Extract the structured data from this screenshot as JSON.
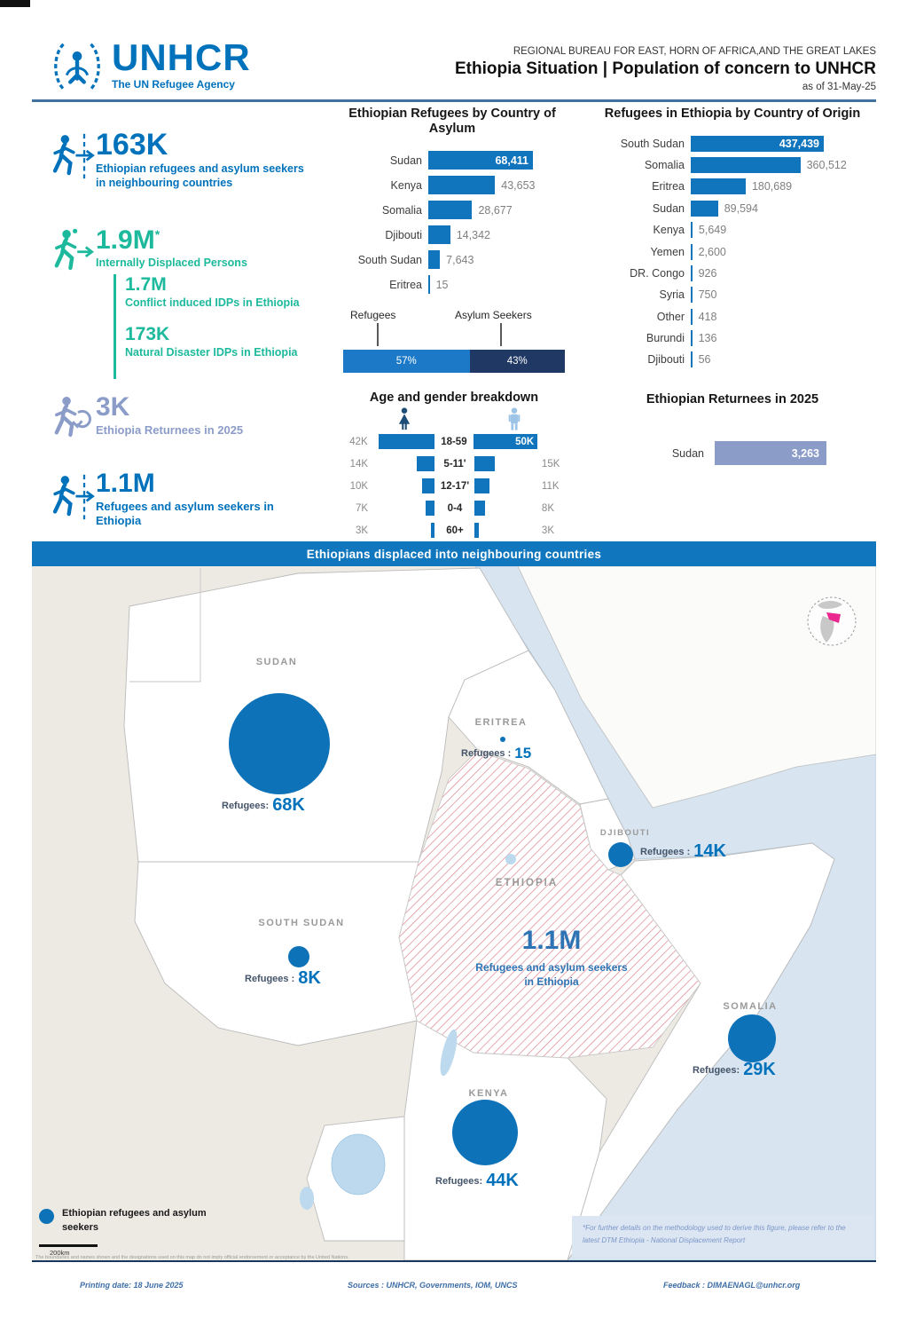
{
  "header": {
    "brand": "UNHCR",
    "tagline": "The UN Refugee Agency",
    "bureau": "REGIONAL BUREAU FOR EAST, HORN OF AFRICA,AND THE GREAT LAKES",
    "title": "Ethiopia Situation | Population of concern to UNHCR",
    "as_of": "as of 31-May-25"
  },
  "stats": {
    "neighbouring": {
      "value": "163K",
      "label_l1": "Ethiopian refugees and asylum seekers",
      "label_l2": "in neighbouring countries"
    },
    "idps": {
      "value": "1.9M",
      "sup": "*",
      "label": "Internally Displaced Persons"
    },
    "conflict_idps": {
      "value": "1.7M",
      "label": "Conflict induced IDPs in Ethiopia"
    },
    "disaster_idps": {
      "value": "173K",
      "label": "Natural Disaster IDPs in Ethiopia"
    },
    "returnees": {
      "value": "3K",
      "label": "Ethiopia Returnees in 2025"
    },
    "in_ethiopia": {
      "value": "1.1M",
      "label_l1": "Refugees and asylum seekers in",
      "label_l2": "Ethiopia"
    }
  },
  "chart_data": [
    {
      "id": "asylum",
      "type": "bar",
      "title": "Ethiopian Refugees by Country of Asylum",
      "categories": [
        "Sudan",
        "Kenya",
        "Somalia",
        "Djibouti",
        "South Sudan",
        "Eritrea"
      ],
      "values": [
        68411,
        43653,
        28677,
        14342,
        7643,
        15
      ],
      "value_labels": [
        "68,411",
        "43,653",
        "28,677",
        "14,342",
        "7,643",
        "15"
      ],
      "bar_color": "#1075BD",
      "value_inside_first": true
    },
    {
      "id": "split",
      "type": "bar",
      "categories": [
        "Refugees",
        "Asylum Seekers"
      ],
      "values": [
        57,
        43
      ],
      "value_labels": [
        "57%",
        "43%"
      ],
      "colors": [
        "#1B79C7",
        "#1F3864"
      ]
    },
    {
      "id": "age_gender",
      "type": "bar",
      "title": "Age and gender breakdown",
      "groups": [
        "18-59",
        "5-11'",
        "12-17'",
        "0-4",
        "60+"
      ],
      "series": [
        {
          "name": "female",
          "values_k": [
            42,
            14,
            10,
            7,
            3
          ],
          "labels": [
            "42K",
            "14K",
            "10K",
            "7K",
            "3K"
          ]
        },
        {
          "name": "male",
          "values_k": [
            50,
            15,
            11,
            8,
            3
          ],
          "labels": [
            "50K",
            "15K",
            "11K",
            "8K",
            "3K"
          ]
        }
      ],
      "male_label_inside_row": 0,
      "bar_color": "#1075BD"
    },
    {
      "id": "origin",
      "type": "bar",
      "title": "Refugees in Ethiopia by Country of Origin",
      "categories": [
        "South Sudan",
        "Somalia",
        "Eritrea",
        "Sudan",
        "Kenya",
        "Yemen",
        "DR. Congo",
        "Syria",
        "Other",
        "Burundi",
        "Djibouti"
      ],
      "values": [
        437439,
        360512,
        180689,
        89594,
        5649,
        2600,
        926,
        750,
        418,
        136,
        56
      ],
      "value_labels": [
        "437,439",
        "360,512",
        "180,689",
        "89,594",
        "5,649",
        "2,600",
        "926",
        "750",
        "418",
        "136",
        "56"
      ],
      "bar_color": "#1075BD",
      "value_inside_first": true
    },
    {
      "id": "returnees",
      "type": "bar",
      "title": "Ethiopian Returnees in 2025",
      "categories": [
        "Sudan"
      ],
      "values": [
        3263
      ],
      "value_labels": [
        "3,263"
      ],
      "bar_color": "#8B9CC8"
    }
  ],
  "map": {
    "banner": "Ethiopians displaced into neighbouring countries",
    "countries": [
      {
        "id": "sudan",
        "name": "SUDAN",
        "stat_label": "Refugees:",
        "stat_value": "68K"
      },
      {
        "id": "eritrea",
        "name": "ERITREA",
        "stat_label": "Refugees :",
        "stat_value": "15"
      },
      {
        "id": "djibouti",
        "name": "DJIBOUTI",
        "stat_label": "Refugees :",
        "stat_value": "14K"
      },
      {
        "id": "south-sudan",
        "name": "SOUTH SUDAN",
        "stat_label": "Refugees :",
        "stat_value": "8K"
      },
      {
        "id": "kenya",
        "name": "KENYA",
        "stat_label": "Refugees:",
        "stat_value": "44K"
      },
      {
        "id": "somalia",
        "name": "SOMALIA",
        "stat_label": "Refugees:",
        "stat_value": "29K"
      }
    ],
    "ethiopia": {
      "name": "ETHIOPIA",
      "value": "1.1M",
      "label_l1": "Refugees and asylum seekers",
      "label_l2": "in Ethiopia"
    },
    "legend": {
      "label_l1": "Ethiopian refugees and asylum",
      "label_l2": "seekers",
      "scale": "200km"
    },
    "disclaimer": "The boundaries and names shown and the designations used on this map do not imply official endorsement or acceptance by the United Nations.",
    "footnote_l1": "*For further details on the methodology used to derive this figure, please refer to the",
    "footnote_l2": "latest DTM Ethiopia - National Displacement Report"
  },
  "footer": {
    "printing": "Printing date: 18 June  2025",
    "sources": "Sources : UNHCR, Governments, IOM, UNCS",
    "feedback": "Feedback : DIMAENAGL@unhcr.org"
  },
  "colors": {
    "brand_blue": "#0072BC",
    "bar_blue": "#1075BD",
    "navy": "#1F3864",
    "green": "#1CB99C",
    "slate_blue": "#8B9CC8",
    "banner_blue": "#1077BE",
    "hatch_red": "#DC8490",
    "highlight_pink": "#EC268F"
  }
}
